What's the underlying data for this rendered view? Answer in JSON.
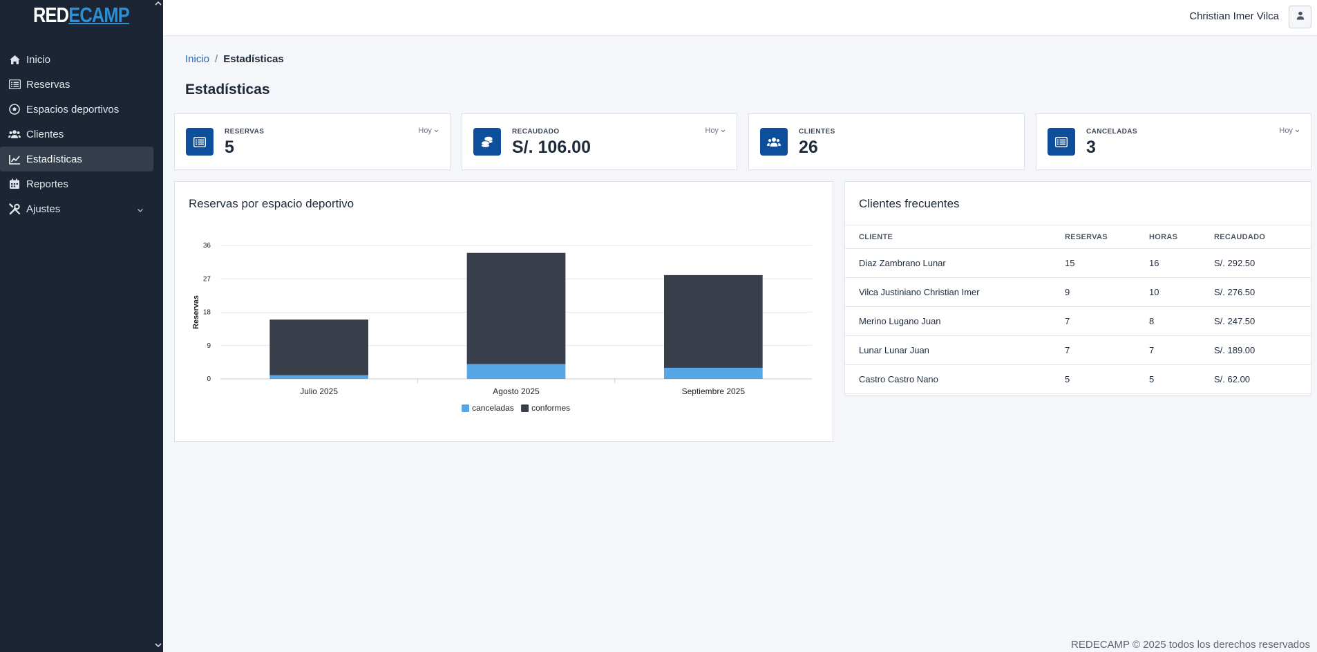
{
  "app": {
    "logo_part1": "RED",
    "logo_part2": "ECAMP"
  },
  "sidebar": {
    "items": [
      {
        "label": "Inicio",
        "icon": "home-icon"
      },
      {
        "label": "Reservas",
        "icon": "list-icon"
      },
      {
        "label": "Espacios deportivos",
        "icon": "soccer-ball-icon"
      },
      {
        "label": "Clientes",
        "icon": "users-icon"
      },
      {
        "label": "Estadísticas",
        "icon": "line-chart-icon",
        "active": true
      },
      {
        "label": "Reportes",
        "icon": "calendar-icon"
      },
      {
        "label": "Ajustes",
        "icon": "tools-icon",
        "has_submenu": true
      }
    ]
  },
  "topbar": {
    "user_name": "Christian Imer Vilca"
  },
  "breadcrumb": {
    "home": "Inicio",
    "separator": "/",
    "current": "Estadísticas"
  },
  "page_title": "Estadísticas",
  "cards": [
    {
      "label": "RESERVAS",
      "value": "5",
      "filter": "Hoy",
      "icon": "list-icon"
    },
    {
      "label": "RECAUDADO",
      "value": "S/. 106.00",
      "filter": "Hoy",
      "icon": "coins-icon"
    },
    {
      "label": "CLIENTES",
      "value": "26",
      "filter": "",
      "icon": "users-icon"
    },
    {
      "label": "CANCELADAS",
      "value": "3",
      "filter": "Hoy",
      "icon": "list-icon"
    }
  ],
  "chart_panel": {
    "title": "Reservas por espacio deportivo"
  },
  "chart_data": {
    "type": "bar",
    "stacked": true,
    "categories": [
      "Julio 2025",
      "Agosto 2025",
      "Septiembre 2025"
    ],
    "series": [
      {
        "name": "canceladas",
        "values": [
          1,
          4,
          3
        ],
        "color": "#56a6e6"
      },
      {
        "name": "conformes",
        "values": [
          15,
          30,
          25
        ],
        "color": "#383f4b"
      }
    ],
    "ylabel": "Reservas",
    "yticks": [
      "0",
      "9",
      "18",
      "27",
      "36"
    ],
    "ylim": [
      0,
      36
    ],
    "grid": true,
    "legend": "bottom-center"
  },
  "clients_panel": {
    "title": "Clientes frecuentes",
    "columns": [
      "CLIENTE",
      "RESERVAS",
      "HORAS",
      "RECAUDADO"
    ],
    "rows": [
      [
        "Diaz Zambrano Lunar",
        "15",
        "16",
        "S/. 292.50"
      ],
      [
        "Vilca Justiniano Christian Imer",
        "9",
        "10",
        "S/. 276.50"
      ],
      [
        "Merino Lugano Juan",
        "7",
        "8",
        "S/. 247.50"
      ],
      [
        "Lunar Lunar Juan",
        "7",
        "7",
        "S/. 189.00"
      ],
      [
        "Castro Castro Nano",
        "5",
        "5",
        "S/. 62.00"
      ]
    ]
  },
  "footer": {
    "text": "REDECAMP © 2025 todos los derechos reservados"
  }
}
